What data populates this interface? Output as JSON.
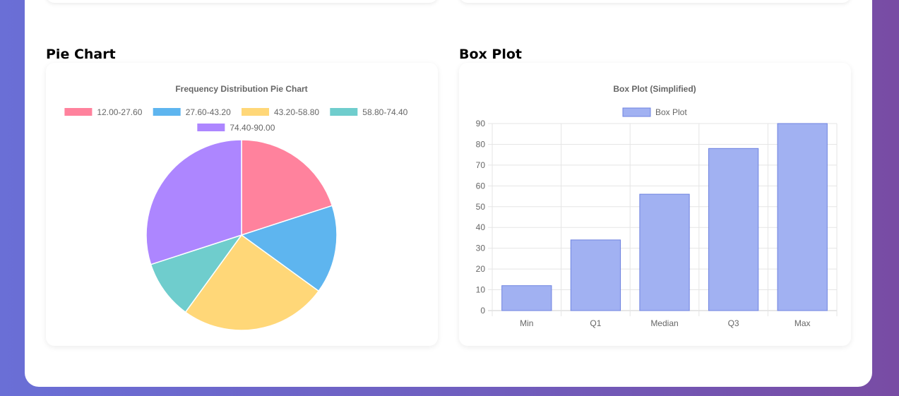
{
  "sections": {
    "pie_heading": "Pie Chart",
    "box_heading": "Box Plot"
  },
  "chart_data": [
    {
      "type": "pie",
      "title": "Frequency Distribution Pie Chart",
      "categories": [
        "12.00-27.60",
        "27.60-43.20",
        "43.20-58.80",
        "58.80-74.40",
        "74.40-90.00"
      ],
      "values": [
        4,
        3,
        5,
        2,
        6
      ],
      "colors": [
        "#ff829d",
        "#5eb5ef",
        "#ffd778",
        "#6fcdcd",
        "#ad86ff"
      ],
      "legend": "top"
    },
    {
      "type": "bar",
      "title": "Box Plot (Simplified)",
      "categories": [
        "Min",
        "Q1",
        "Median",
        "Q3",
        "Max"
      ],
      "series": [
        {
          "name": "Box Plot",
          "values": [
            12,
            34,
            56,
            78,
            90
          ]
        }
      ],
      "ylim": [
        0,
        90
      ],
      "yticks": [
        0,
        10,
        20,
        30,
        40,
        50,
        60,
        70,
        80,
        90
      ],
      "grid": true,
      "legend": "top",
      "color": "#a1b1f2",
      "border_color": "#6f83e0"
    }
  ]
}
